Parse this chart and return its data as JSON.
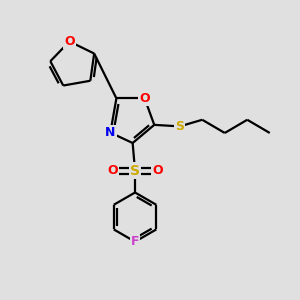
{
  "bg_color": "#e0e0e0",
  "atom_colors": {
    "O": "#ff0000",
    "N": "#0000ee",
    "S_sulfonyl": "#ccaa00",
    "S_thio": "#ccaa00",
    "F": "#cc44cc",
    "C": "#000000"
  },
  "bond_color": "#000000",
  "bond_width": 1.6,
  "font_size_atom": 9
}
